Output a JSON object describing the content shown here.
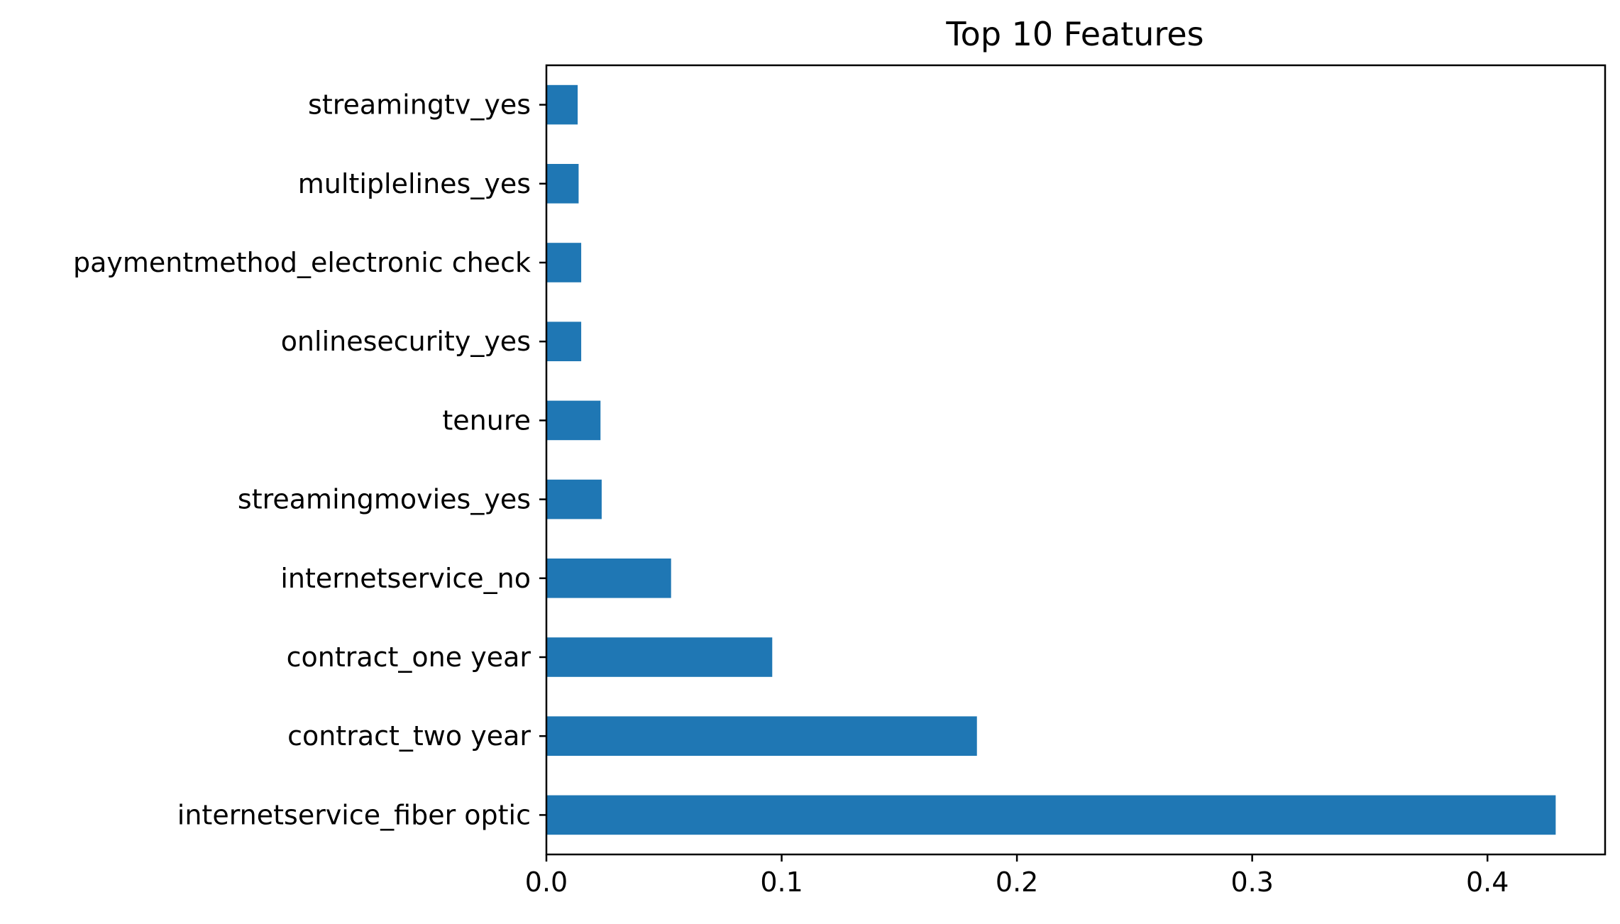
{
  "chart_data": {
    "type": "bar",
    "orientation": "horizontal",
    "title": "Top 10 Features",
    "xlabel": "",
    "ylabel": "",
    "categories": [
      "internetservice_fiber optic",
      "contract_two year",
      "contract_one year",
      "internetservice_no",
      "streamingmovies_yes",
      "tenure",
      "onlinesecurity_yes",
      "paymentmethod_electronic check",
      "multiplelines_yes",
      "streamingtv_yes"
    ],
    "values": [
      0.429,
      0.183,
      0.096,
      0.053,
      0.0235,
      0.023,
      0.0148,
      0.0148,
      0.0137,
      0.0133
    ],
    "xlim": [
      0,
      0.45
    ],
    "xticks": [
      0.0,
      0.1,
      0.2,
      0.3,
      0.4
    ],
    "xtick_labels": [
      "0.0",
      "0.1",
      "0.2",
      "0.3",
      "0.4"
    ],
    "grid": false,
    "bar_color": "#1f77b4"
  }
}
